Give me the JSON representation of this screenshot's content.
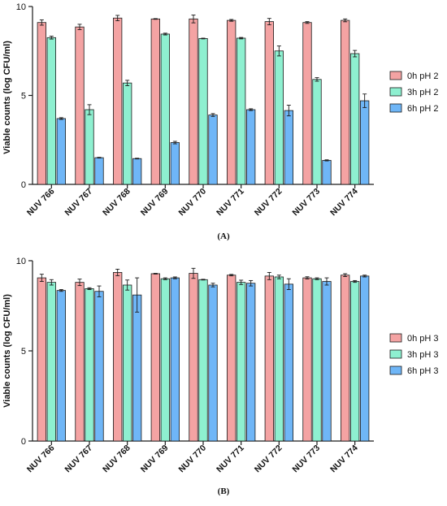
{
  "colors": {
    "series_0": "#f4a3a3",
    "series_1": "#8ef0d0",
    "series_2": "#6fb6f7",
    "stroke": "#1a1a1a"
  },
  "chart_data": [
    {
      "type": "bar",
      "panel_label": "(A)",
      "ylabel": "Viable counts (log CFU/ml)",
      "ylim": [
        0,
        10
      ],
      "yticks": [
        "0",
        "5",
        "10"
      ],
      "categories": [
        "NUV 766",
        "NUV 767",
        "NUV 768",
        "NUV 769",
        "NUV 770",
        "NUV 771",
        "NUV 772",
        "NUV 773",
        "NUV 774"
      ],
      "legend_position": "right",
      "grid": false,
      "series": [
        {
          "name": "0h pH 2",
          "values": [
            9.1,
            8.85,
            9.35,
            9.3,
            9.3,
            9.22,
            9.15,
            9.1,
            9.22
          ],
          "errors": [
            0.15,
            0.15,
            0.15,
            0.02,
            0.22,
            0.05,
            0.18,
            0.05,
            0.08
          ]
        },
        {
          "name": "3h pH 2",
          "values": [
            8.25,
            4.2,
            5.7,
            8.45,
            8.2,
            8.22,
            7.5,
            5.9,
            7.35
          ],
          "errors": [
            0.08,
            0.28,
            0.15,
            0.05,
            0.02,
            0.04,
            0.28,
            0.1,
            0.18
          ]
        },
        {
          "name": "6h pH 2",
          "values": [
            3.7,
            1.5,
            1.45,
            2.35,
            3.9,
            4.2,
            4.15,
            1.35,
            4.7
          ],
          "errors": [
            0.05,
            0.02,
            0.02,
            0.07,
            0.08,
            0.05,
            0.3,
            0.03,
            0.38
          ]
        }
      ]
    },
    {
      "type": "bar",
      "panel_label": "(B)",
      "ylabel": "Viable counts (log CFU/ml)",
      "ylim": [
        0,
        10
      ],
      "yticks": [
        "0",
        "5",
        "10"
      ],
      "categories": [
        "NUV 766",
        "NUV 767",
        "NUV 768",
        "NUV 769",
        "NUV 770",
        "NUV 771",
        "NUV 772",
        "NUV 773",
        "NUV 774"
      ],
      "legend_position": "right",
      "grid": false,
      "series": [
        {
          "name": "0h pH 3",
          "values": [
            9.05,
            8.8,
            9.35,
            9.28,
            9.3,
            9.2,
            9.15,
            9.05,
            9.2
          ],
          "errors": [
            0.2,
            0.18,
            0.18,
            0.02,
            0.28,
            0.04,
            0.2,
            0.06,
            0.08
          ]
        },
        {
          "name": "3h pH 3",
          "values": [
            8.8,
            8.45,
            8.65,
            9.0,
            8.95,
            8.8,
            9.1,
            9.0,
            8.85
          ],
          "errors": [
            0.15,
            0.05,
            0.28,
            0.05,
            0.02,
            0.12,
            0.1,
            0.05,
            0.05
          ]
        },
        {
          "name": "6h pH 3",
          "values": [
            8.35,
            8.3,
            8.1,
            9.05,
            8.65,
            8.75,
            8.7,
            8.85,
            9.15
          ],
          "errors": [
            0.05,
            0.3,
            0.95,
            0.05,
            0.1,
            0.15,
            0.3,
            0.2,
            0.05
          ]
        }
      ]
    }
  ]
}
